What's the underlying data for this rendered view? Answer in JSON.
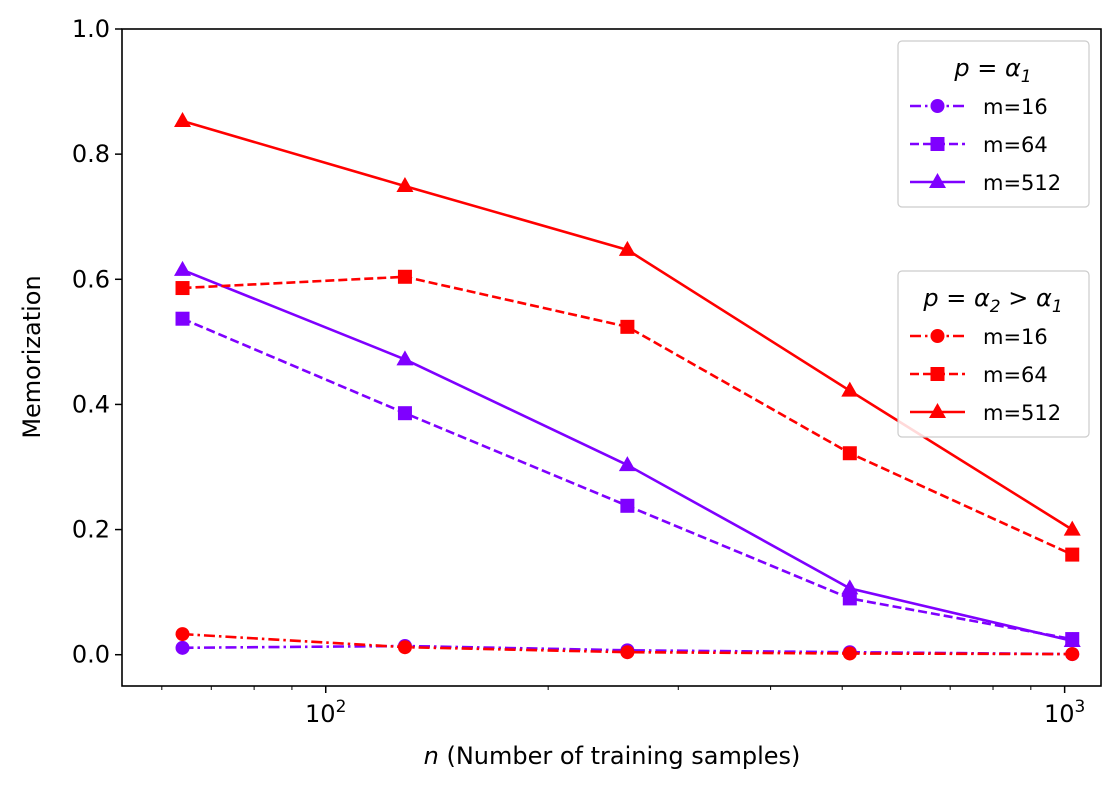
{
  "chart_data": {
    "type": "line",
    "xscale": "log",
    "xlim": [
      53,
      1120
    ],
    "ylim": [
      -0.05,
      1.0
    ],
    "x": [
      64,
      128,
      256,
      512,
      1024
    ],
    "xlabel": {
      "var": "n",
      "text": " (Number of training samples)"
    },
    "ylabel": "Memorization",
    "yticks": [
      "0.0",
      "0.2",
      "0.4",
      "0.6",
      "0.8",
      "1.0"
    ],
    "xticks": [
      {
        "base": "10",
        "exp": "2",
        "value": 100
      },
      {
        "base": "10",
        "exp": "3",
        "value": 1000
      }
    ],
    "colors": {
      "alpha1": "#7f00ff",
      "alpha2": "#ff0000"
    },
    "series": [
      {
        "name": "m=16",
        "group": "alpha1",
        "marker": "circle",
        "dash": "dashdot",
        "values": [
          0.011,
          0.014,
          0.007,
          0.004,
          0.001
        ]
      },
      {
        "name": "m=64",
        "group": "alpha1",
        "marker": "square",
        "dash": "dashed",
        "values": [
          0.537,
          0.386,
          0.238,
          0.09,
          0.025
        ]
      },
      {
        "name": "m=512",
        "group": "alpha1",
        "marker": "triangle",
        "dash": "solid",
        "values": [
          0.615,
          0.472,
          0.303,
          0.106,
          0.022
        ]
      },
      {
        "name": "m=16",
        "group": "alpha2",
        "marker": "circle",
        "dash": "dashdot",
        "values": [
          0.033,
          0.012,
          0.004,
          0.002,
          0.001
        ]
      },
      {
        "name": "m=64",
        "group": "alpha2",
        "marker": "square",
        "dash": "dashed",
        "values": [
          0.586,
          0.604,
          0.524,
          0.322,
          0.16
        ]
      },
      {
        "name": "m=512",
        "group": "alpha2",
        "marker": "triangle",
        "dash": "solid",
        "values": [
          0.853,
          0.749,
          0.647,
          0.422,
          0.2
        ]
      }
    ],
    "legends": [
      {
        "group": "alpha1",
        "title": {
          "p": "p",
          "eq": " = ",
          "a": "α",
          "sub": "1",
          "rest": "",
          "sub2": ""
        },
        "placement": "top-right"
      },
      {
        "group": "alpha2",
        "title": {
          "p": "p",
          "eq": " = ",
          "a": "α",
          "sub": "2",
          "rest": " > α",
          "sub2": "1"
        },
        "placement": "center-right"
      }
    ]
  }
}
